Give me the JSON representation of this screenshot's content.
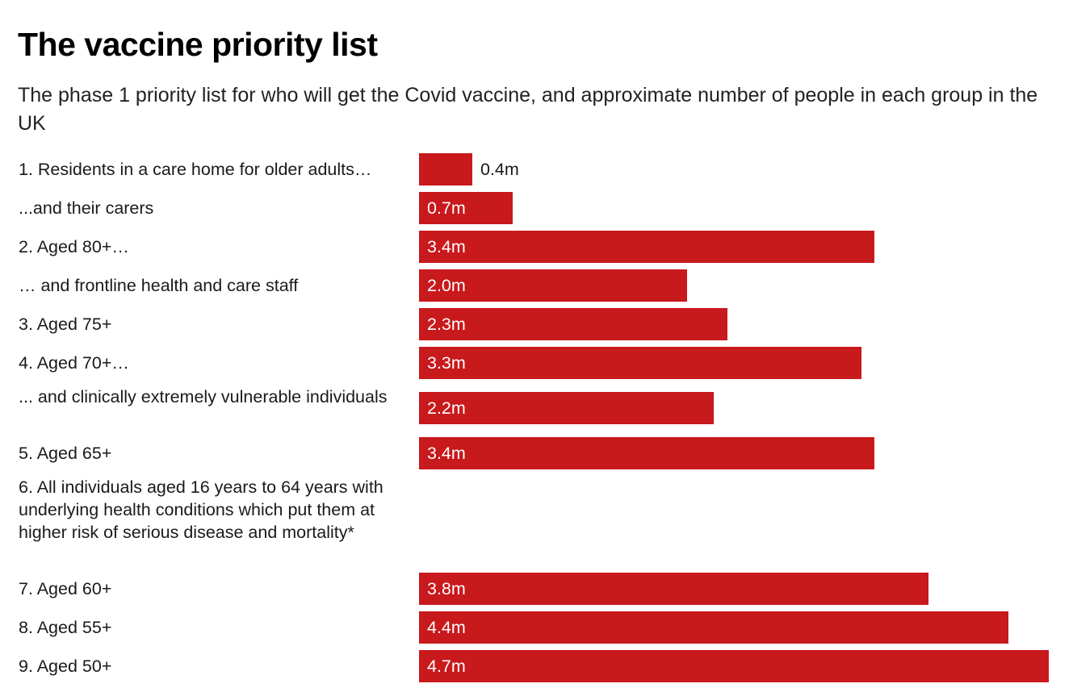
{
  "title": "The vaccine priority list",
  "subtitle": "The phase 1 priority list for who will get the Covid vaccine, and approximate number of people in each group in the UK",
  "colors": {
    "bar": "#c8191c",
    "label_inside": "#ffffff",
    "label_outside": "#1a1a1a"
  },
  "chart_data": {
    "type": "bar",
    "orientation": "horizontal",
    "title": "The vaccine priority list",
    "subtitle": "The phase 1 priority list for who will get the Covid vaccine, and approximate number of people in each group in the UK",
    "unit": "m",
    "grid": false,
    "categories": [
      "1. Residents in a care home for older adults…",
      "...and their carers",
      "2. Aged 80+…",
      "… and frontline health and care staff",
      "3. Aged 75+",
      "4. Aged 70+…",
      "... and clinically extremely vulnerable individuals",
      "5. Aged 65+",
      "6. All individuals aged 16 years to 64 years with underlying health conditions which put them at higher risk of serious disease and mortality*",
      "7. Aged 60+",
      "8. Aged 55+",
      "9. Aged 50+"
    ],
    "values": [
      0.4,
      0.7,
      3.4,
      2.0,
      2.3,
      3.3,
      2.2,
      3.4,
      null,
      3.8,
      4.4,
      4.7
    ],
    "value_labels": [
      "0.4m",
      "0.7m",
      "3.4m",
      "2.0m",
      "2.3m",
      "3.3m",
      "2.2m",
      "3.4m",
      "",
      "3.8m",
      "4.4m",
      "4.7m"
    ],
    "xlim": [
      0,
      4.7
    ]
  }
}
